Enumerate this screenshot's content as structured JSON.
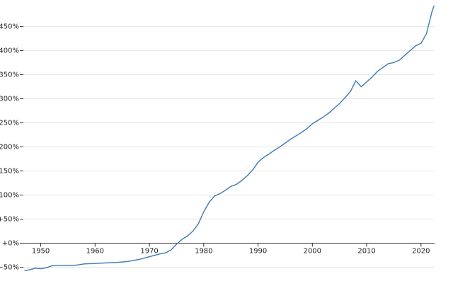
{
  "chart_data": {
    "type": "line",
    "x": [
      1947,
      1948,
      1949,
      1950,
      1951,
      1952,
      1953,
      1955,
      1956,
      1957,
      1958,
      1960,
      1962,
      1964,
      1966,
      1968,
      1970,
      1972,
      1973,
      1974,
      1975,
      1976,
      1977,
      1978,
      1979,
      1980,
      1981,
      1982,
      1983,
      1984,
      1985,
      1986,
      1987,
      1988,
      1989,
      1990,
      1991,
      1992,
      1993,
      1994,
      1995,
      1996,
      1997,
      1998,
      1999,
      2000,
      2001,
      2002,
      2003,
      2004,
      2005,
      2006,
      2007,
      2008,
      2009,
      2010,
      2011,
      2012,
      2013,
      2014,
      2015,
      2016,
      2017,
      2018,
      2019,
      2020,
      2021,
      2022,
      2022.4
    ],
    "series": [
      {
        "color": "#4a7fb5",
        "values": [
          -57,
          -55,
          -52,
          -53,
          -51,
          -47,
          -46,
          -46,
          -46,
          -45,
          -43,
          -42,
          -41,
          -40,
          -38,
          -34,
          -28,
          -22,
          -20,
          -14,
          -2,
          8,
          15,
          25,
          40,
          65,
          85,
          98,
          103,
          110,
          118,
          122,
          130,
          140,
          152,
          168,
          178,
          185,
          193,
          200,
          208,
          216,
          223,
          230,
          238,
          248,
          255,
          262,
          270,
          280,
          290,
          302,
          315,
          337,
          325,
          335,
          345,
          357,
          365,
          373,
          375,
          380,
          390,
          400,
          410,
          415,
          435,
          480,
          493
        ]
      }
    ],
    "xlim": [
      1946.8,
      2022.5
    ],
    "xticks": [
      1950,
      1960,
      1970,
      1980,
      1990,
      2000,
      2010,
      2020
    ],
    "ylim": [
      -58,
      505
    ],
    "yticks": [
      {
        "value": -50,
        "label": "−50%"
      },
      {
        "value": 0,
        "label": "+0%"
      },
      {
        "value": 50,
        "label": "+50%"
      },
      {
        "value": 100,
        "label": "+100%"
      },
      {
        "value": 150,
        "label": "+150%"
      },
      {
        "value": 200,
        "label": "+200%"
      },
      {
        "value": 250,
        "label": "+250%"
      },
      {
        "value": 300,
        "label": "+300%"
      },
      {
        "value": 350,
        "label": "+350%"
      },
      {
        "value": 400,
        "label": "+400%"
      },
      {
        "value": 450,
        "label": "+450%"
      }
    ],
    "grid": true
  }
}
